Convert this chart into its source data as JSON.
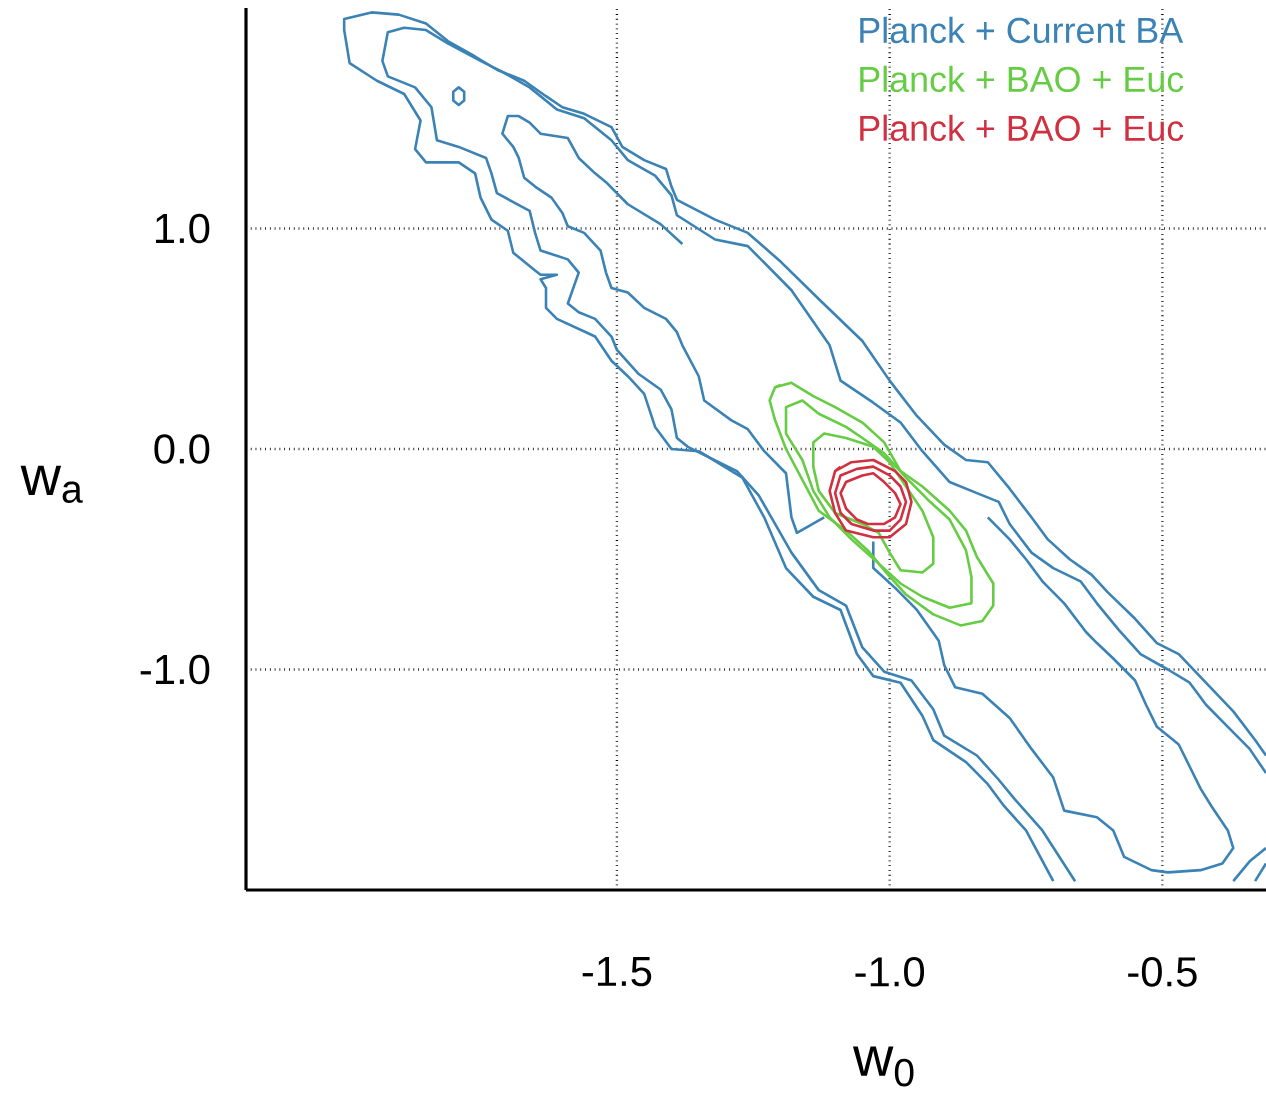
{
  "chart_data": {
    "type": "line",
    "xlabel": "w$_{0}$",
    "ylabel": "w$_{a}$",
    "xlim": [
      -2.18,
      -0.31
    ],
    "ylim": [
      -2,
      2
    ],
    "xticks": [
      {
        "value": -1.5,
        "label": "-1.5"
      },
      {
        "value": -1.0,
        "label": "-1.0"
      },
      {
        "value": -0.5,
        "label": "-0.5"
      }
    ],
    "yticks": [
      {
        "value": 1.0,
        "label": "1.0"
      },
      {
        "value": 0.0,
        "label": "0.0"
      },
      {
        "value": -1.0,
        "label": "-1.0"
      }
    ],
    "grid": true,
    "legend": "top right",
    "marker": "none",
    "line_style": "solid",
    "series": [
      {
        "name": "Planck + Current BA",
        "color": "#3b82b5",
        "x": [
          -0.31,
          -0.33,
          -0.37,
          -0.42,
          -0.47,
          -0.51,
          -0.55,
          -0.6,
          -0.63,
          -0.67,
          -0.71,
          -0.74,
          -0.78,
          -0.82,
          -0.86,
          -0.9,
          -0.95,
          -1.0,
          -1.05,
          -1.13,
          -1.2,
          -1.26,
          -1.32,
          -1.39,
          -1.4,
          -1.41,
          -1.45,
          -1.49,
          -1.51,
          -1.56,
          -1.6,
          -1.63,
          -1.67,
          -1.72,
          -1.76,
          -1.81,
          -1.85,
          -1.9,
          -1.95,
          -2.0,
          -2.0,
          -1.99,
          -1.94,
          -1.89,
          -1.86,
          -1.87,
          -1.85,
          -1.79,
          -1.76,
          -1.75,
          -1.73,
          -1.7,
          -1.69,
          -1.65,
          -1.64,
          -1.61,
          -1.64,
          -1.63,
          -1.63,
          -1.61,
          -1.54,
          -1.51,
          -1.48,
          -1.45,
          -1.43,
          -1.4,
          -1.35,
          -1.27,
          -1.23,
          -1.19,
          -1.14,
          -1.09,
          -1.06,
          -1.03,
          -0.98,
          -0.94,
          -0.92,
          -0.86,
          -0.82,
          -0.79,
          -0.75,
          -0.7
        ],
        "values": [
          -1.39,
          -1.32,
          -1.19,
          -1.06,
          -0.93,
          -0.88,
          -0.77,
          -0.65,
          -0.57,
          -0.5,
          -0.41,
          -0.31,
          -0.18,
          -0.06,
          -0.05,
          0.02,
          0.15,
          0.31,
          0.49,
          0.68,
          0.85,
          0.98,
          1.04,
          1.13,
          1.19,
          1.27,
          1.31,
          1.37,
          1.46,
          1.52,
          1.55,
          1.6,
          1.67,
          1.72,
          1.78,
          1.85,
          1.93,
          1.97,
          1.98,
          1.95,
          1.9,
          1.75,
          1.67,
          1.61,
          1.49,
          1.36,
          1.3,
          1.3,
          1.25,
          1.14,
          1.04,
          0.99,
          0.89,
          0.81,
          0.79,
          0.79,
          0.77,
          0.73,
          0.64,
          0.59,
          0.51,
          0.4,
          0.33,
          0.25,
          0.1,
          0.0,
          -0.01,
          -0.13,
          -0.31,
          -0.54,
          -0.67,
          -0.73,
          -0.93,
          -1.03,
          -1.06,
          -1.21,
          -1.32,
          -1.42,
          -1.52,
          -1.62,
          -1.73,
          -1.96
        ]
      },
      {
        "color": "#3b82b5",
        "x": [
          -0.31,
          -0.34,
          -0.38,
          -0.42,
          -0.45,
          -0.49,
          -0.54,
          -0.58,
          -0.62,
          -0.65,
          -0.7,
          -0.74,
          -0.78,
          -0.8,
          -0.84,
          -0.89,
          -0.94,
          -0.98,
          -1.03,
          -1.09,
          -1.11,
          -1.18,
          -1.26,
          -1.32,
          -1.39,
          -1.4,
          -1.43,
          -1.48,
          -1.51,
          -1.56,
          -1.61,
          -1.66,
          -1.71,
          -1.75,
          -1.81,
          -1.85,
          -1.89,
          -1.92,
          -1.93,
          -1.92,
          -1.87,
          -1.84,
          -1.83,
          -1.79,
          -1.74,
          -1.73,
          -1.72,
          -1.69,
          -1.66,
          -1.65,
          -1.64,
          -1.59,
          -1.57,
          -1.59,
          -1.57,
          -1.54,
          -1.51,
          -1.5,
          -1.46,
          -1.42,
          -1.4,
          -1.39,
          -1.37,
          -1.28,
          -1.24,
          -1.18,
          -1.13,
          -1.08,
          -1.05,
          -1.01,
          -0.96,
          -0.92,
          -0.9,
          -0.84,
          -0.8,
          -0.77,
          -0.72,
          -0.66
        ],
        "values": [
          -1.47,
          -1.36,
          -1.26,
          -1.16,
          -1.06,
          -1.0,
          -0.93,
          -0.82,
          -0.7,
          -0.6,
          -0.54,
          -0.47,
          -0.34,
          -0.24,
          -0.2,
          -0.15,
          -0.01,
          0.12,
          0.21,
          0.31,
          0.47,
          0.72,
          0.92,
          0.95,
          1.06,
          1.15,
          1.24,
          1.31,
          1.4,
          1.5,
          1.54,
          1.64,
          1.71,
          1.76,
          1.84,
          1.9,
          1.91,
          1.89,
          1.76,
          1.69,
          1.64,
          1.55,
          1.4,
          1.37,
          1.32,
          1.25,
          1.16,
          1.12,
          1.08,
          0.98,
          0.9,
          0.86,
          0.8,
          0.66,
          0.62,
          0.59,
          0.51,
          0.45,
          0.34,
          0.27,
          0.18,
          0.05,
          0.01,
          -0.1,
          -0.21,
          -0.47,
          -0.64,
          -0.71,
          -0.9,
          -1.01,
          -1.05,
          -1.18,
          -1.3,
          -1.39,
          -1.5,
          -1.59,
          -1.73,
          -1.96
        ]
      },
      {
        "color": "#3b82b5",
        "x": [
          -1.38,
          -1.42,
          -1.48,
          -1.52,
          -1.54,
          -1.57,
          -1.59,
          -1.64,
          -1.66,
          -1.68,
          -1.7,
          -1.71,
          -1.69,
          -1.68,
          -1.67,
          -1.65,
          -1.62,
          -1.6,
          -1.59,
          -1.56,
          -1.53,
          -1.52,
          -1.51,
          -1.48,
          -1.45,
          -1.41,
          -1.39,
          -1.38,
          -1.35,
          -1.34,
          -1.29,
          -1.26,
          -1.23,
          -1.19,
          -1.18,
          -1.17,
          -1.12
        ],
        "values": [
          0.93,
          1.02,
          1.11,
          1.21,
          1.25,
          1.32,
          1.41,
          1.43,
          1.48,
          1.51,
          1.51,
          1.43,
          1.37,
          1.32,
          1.23,
          1.19,
          1.14,
          1.07,
          1.01,
          0.98,
          0.9,
          0.8,
          0.73,
          0.71,
          0.64,
          0.59,
          0.53,
          0.47,
          0.33,
          0.22,
          0.13,
          0.09,
          -0.01,
          -0.11,
          -0.31,
          -0.38,
          -0.31
        ]
      },
      {
        "color": "#3b82b5",
        "x": [
          -1.03,
          -1.03,
          -0.99,
          -0.95,
          -0.91,
          -0.9,
          -0.88,
          -0.83,
          -0.78,
          -0.74,
          -0.7,
          -0.68,
          -0.62,
          -0.59,
          -0.57,
          -0.52,
          -0.49,
          -0.43,
          -0.39,
          -0.37,
          -0.38,
          -0.41,
          -0.43,
          -0.45,
          -0.47,
          -0.51,
          -0.53,
          -0.55,
          -0.59,
          -0.62,
          -0.64,
          -0.68,
          -0.72,
          -0.75,
          -0.78,
          -0.82
        ],
        "values": [
          -0.42,
          -0.54,
          -0.63,
          -0.73,
          -0.87,
          -0.98,
          -1.08,
          -1.11,
          -1.22,
          -1.36,
          -1.49,
          -1.64,
          -1.67,
          -1.73,
          -1.85,
          -1.91,
          -1.92,
          -1.91,
          -1.88,
          -1.81,
          -1.73,
          -1.62,
          -1.54,
          -1.44,
          -1.34,
          -1.26,
          -1.16,
          -1.05,
          -0.95,
          -0.88,
          -0.83,
          -0.7,
          -0.6,
          -0.5,
          -0.41,
          -0.31
        ]
      },
      {
        "color": "#3b82b5",
        "x": [
          -0.37,
          -0.34,
          -0.31
        ],
        "values": [
          -1.96,
          -1.87,
          -1.81
        ]
      },
      {
        "color": "#3b82b5",
        "x": [
          -0.33,
          -0.31
        ],
        "values": [
          -1.96,
          -1.88
        ]
      },
      {
        "color": "#3b82b5",
        "x": [
          -1.79,
          -1.78,
          -1.78,
          -1.79,
          -1.8,
          -1.8,
          -1.79,
          -1.78
        ],
        "values": [
          1.64,
          1.62,
          1.58,
          1.56,
          1.58,
          1.62,
          1.64,
          1.62
        ]
      },
      {
        "name": "Planck + BAO + Euc",
        "color": "#66cc44",
        "x": [
          -1.21,
          -1.18,
          -1.14,
          -1.1,
          -1.05,
          -1.01,
          -0.98,
          -0.94,
          -0.89,
          -0.86,
          -0.84,
          -0.81,
          -0.81,
          -0.83,
          -0.87,
          -0.92,
          -0.97,
          -1.01,
          -1.04,
          -1.08,
          -1.13,
          -1.16,
          -1.19,
          -1.21,
          -1.22,
          -1.21,
          -1.2
        ],
        "values": [
          0.28,
          0.3,
          0.24,
          0.19,
          0.12,
          0.03,
          -0.1,
          -0.17,
          -0.28,
          -0.37,
          -0.49,
          -0.61,
          -0.71,
          -0.78,
          -0.8,
          -0.75,
          -0.66,
          -0.55,
          -0.46,
          -0.37,
          -0.28,
          -0.14,
          0.0,
          0.13,
          0.22,
          0.28,
          0.29
        ]
      },
      {
        "color": "#66cc44",
        "x": [
          -1.19,
          -1.16,
          -1.13,
          -1.08,
          -1.05,
          -1.01,
          -0.97,
          -0.93,
          -0.89,
          -0.86,
          -0.85,
          -0.85,
          -0.89,
          -0.94,
          -0.98,
          -1.02,
          -1.07,
          -1.11,
          -1.14,
          -1.16,
          -1.19,
          -1.19,
          -1.18
        ],
        "values": [
          0.19,
          0.22,
          0.16,
          0.1,
          0.05,
          -0.02,
          -0.13,
          -0.23,
          -0.32,
          -0.46,
          -0.58,
          -0.7,
          -0.72,
          -0.67,
          -0.61,
          -0.52,
          -0.41,
          -0.31,
          -0.19,
          -0.05,
          0.07,
          0.19,
          0.2
        ]
      },
      {
        "color": "#66cc44",
        "x": [
          -1.14,
          -1.12,
          -1.08,
          -1.03,
          -1.0,
          -0.97,
          -0.94,
          -0.92,
          -0.92,
          -0.94,
          -0.98,
          -1.0,
          -1.02,
          -1.05,
          -1.1,
          -1.13,
          -1.14,
          -1.14,
          -1.13
        ],
        "values": [
          0.03,
          0.07,
          0.05,
          0.01,
          -0.06,
          -0.17,
          -0.28,
          -0.4,
          -0.52,
          -0.56,
          -0.55,
          -0.47,
          -0.38,
          -0.34,
          -0.29,
          -0.19,
          -0.08,
          0.03,
          0.05
        ]
      },
      {
        "name": "Planck + BAO + Euc",
        "color": "#d03040",
        "x": [
          -1.1,
          -1.07,
          -1.03,
          -0.99,
          -0.97,
          -0.96,
          -0.97,
          -1.0,
          -1.03,
          -1.08,
          -1.1,
          -1.11,
          -1.1,
          -1.09
        ],
        "values": [
          -0.1,
          -0.06,
          -0.05,
          -0.1,
          -0.15,
          -0.24,
          -0.34,
          -0.4,
          -0.4,
          -0.37,
          -0.29,
          -0.19,
          -0.1,
          -0.08
        ]
      },
      {
        "color": "#d03040",
        "x": [
          -1.09,
          -1.06,
          -1.03,
          -1.0,
          -0.98,
          -0.97,
          -0.98,
          -1.0,
          -1.03,
          -1.07,
          -1.09,
          -1.1,
          -1.09,
          -1.08
        ],
        "values": [
          -0.12,
          -0.09,
          -0.08,
          -0.12,
          -0.17,
          -0.24,
          -0.32,
          -0.37,
          -0.37,
          -0.34,
          -0.29,
          -0.2,
          -0.12,
          -0.11
        ]
      },
      {
        "color": "#d03040",
        "x": [
          -1.08,
          -1.05,
          -1.03,
          -1.01,
          -0.99,
          -0.98,
          -0.99,
          -1.01,
          -1.04,
          -1.06,
          -1.08,
          -1.09,
          -1.08,
          -1.07
        ],
        "values": [
          -0.15,
          -0.12,
          -0.11,
          -0.15,
          -0.2,
          -0.25,
          -0.31,
          -0.34,
          -0.34,
          -0.32,
          -0.27,
          -0.2,
          -0.15,
          -0.14
        ]
      }
    ]
  }
}
